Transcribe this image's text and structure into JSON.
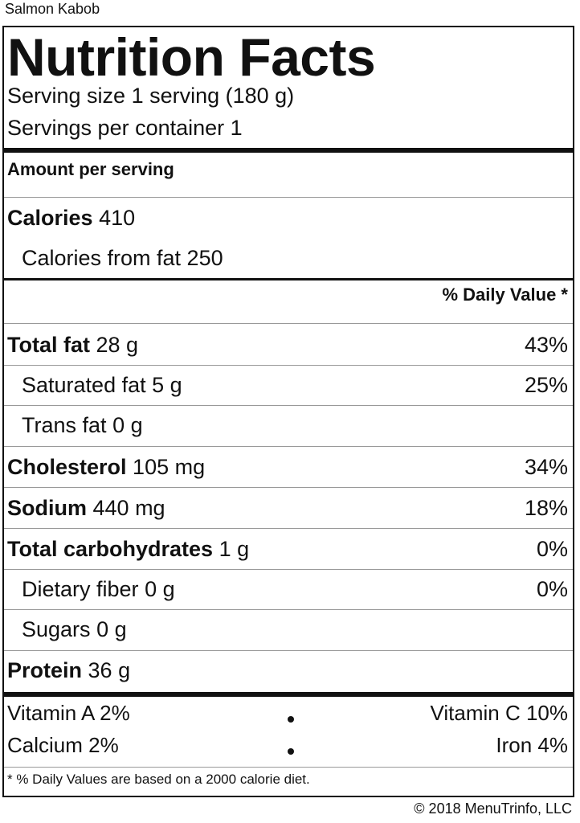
{
  "recipe_title": "Salmon Kabob",
  "heading": "Nutrition Facts",
  "serving_size": "Serving size 1 serving (180 g)",
  "servings_per_container": "Servings per container 1",
  "amount_per_serving": "Amount per serving",
  "calories": {
    "label": "Calories",
    "value": "410"
  },
  "calories_from_fat": "Calories from fat 250",
  "daily_value_header": "% Daily Value *",
  "nutrients": [
    {
      "label": "Total fat",
      "amount": "28 g",
      "dv": "43%"
    },
    {
      "label": "Saturated fat",
      "amount": "5 g",
      "dv": "25%"
    },
    {
      "label": "Trans fat",
      "amount": "0 g",
      "dv": ""
    },
    {
      "label": "Cholesterol",
      "amount": "105 mg",
      "dv": "34%"
    },
    {
      "label": "Sodium",
      "amount": "440 mg",
      "dv": "18%"
    },
    {
      "label": "Total carbohydrates",
      "amount": "1 g",
      "dv": "0%"
    },
    {
      "label": "Dietary fiber",
      "amount": "0 g",
      "dv": "0%"
    },
    {
      "label": "Sugars",
      "amount": "0 g",
      "dv": ""
    },
    {
      "label": "Protein",
      "amount": "36 g",
      "dv": ""
    }
  ],
  "vitamins": {
    "vitamin_a": "Vitamin A 2%",
    "vitamin_c": "Vitamin C 10%",
    "calcium": "Calcium 2%",
    "iron": "Iron 4%"
  },
  "footnote": "* % Daily Values are based on a 2000 calorie diet.",
  "copyright": "© 2018 MenuTrinfo, LLC"
}
